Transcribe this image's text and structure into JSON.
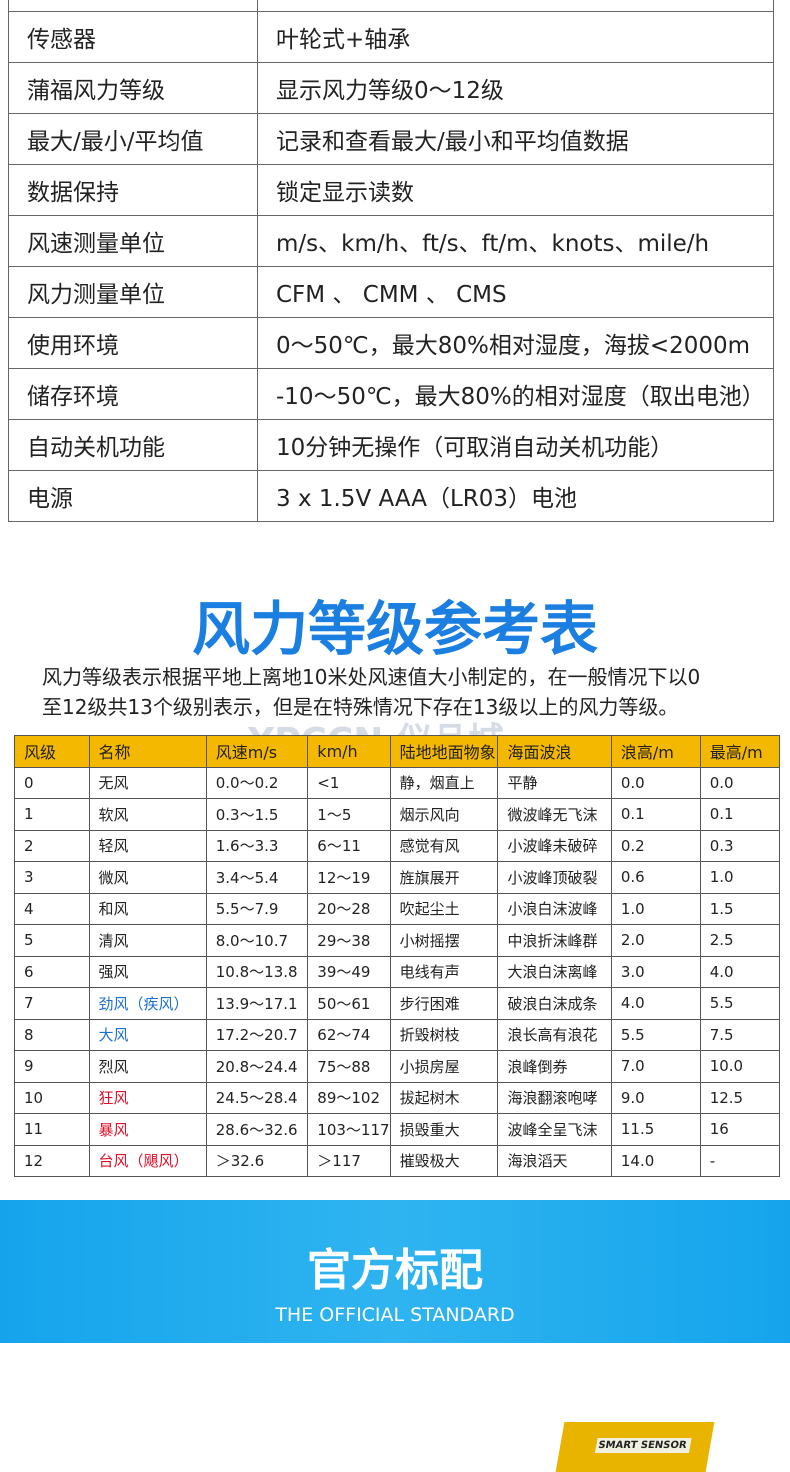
{
  "specs": {
    "rows": [
      [
        "传感器",
        "叶轮式+轴承"
      ],
      [
        "蒲福风力等级",
        "显示风力等级0～12级"
      ],
      [
        "最大/最小/平均值",
        "记录和查看最大/最小和平均值数据"
      ],
      [
        "数据保持",
        "锁定显示读数"
      ],
      [
        "风速测量单位",
        "m/s、km/h、ft/s、ft/m、knots、mile/h"
      ],
      [
        "风力测量单位",
        "CFM 、 CMM 、 CMS"
      ],
      [
        "使用环境",
        "0～50℃，最大80%相对湿度，海拔<2000m"
      ],
      [
        "储存环境",
        "-10～50℃，最大80%的相对湿度（取出电池）"
      ],
      [
        "自动关机功能",
        "10分钟无操作（可取消自动关机功能）"
      ],
      [
        "电源",
        "3 x 1.5V AAA（LR03）电池"
      ]
    ]
  },
  "reference": {
    "title": "风力等级参考表",
    "description": [
      "风力等级表示根据平地上离地10米处风速值大小制定的，在一般情况下以0",
      "至12级共13个级别表示，但是在特殊情况下存在13级以上的风力等级。"
    ],
    "watermark": "YPCCN 仪品城"
  },
  "table": {
    "header": [
      "风级",
      "名称",
      "风速m/s",
      "km/h",
      "陆地地面物象",
      "海面波浪",
      "浪高/m",
      "最高/m"
    ],
    "rows": [
      [
        "0",
        "无风",
        "0.0～0.2",
        "<1",
        "静，烟直上",
        "平静",
        "0.0",
        "0.0"
      ],
      [
        "1",
        "软风",
        "0.3～1.5",
        "1～5",
        "烟示风向",
        "微波峰无飞沫",
        "0.1",
        "0.1"
      ],
      [
        "2",
        "轻风",
        "1.6～3.3",
        "6～11",
        "感觉有风",
        "小波峰未破碎",
        "0.2",
        "0.3"
      ],
      [
        "3",
        "微风",
        "3.4～5.4",
        "12～19",
        "旌旗展开",
        "小波峰顶破裂",
        "0.6",
        "1.0"
      ],
      [
        "4",
        "和风",
        "5.5～7.9",
        "20～28",
        "吹起尘土",
        "小浪白沫波峰",
        "1.0",
        "1.5"
      ],
      [
        "5",
        "清风",
        "8.0～10.7",
        "29～38",
        "小树摇摆",
        "中浪折沫峰群",
        "2.0",
        "2.5"
      ],
      [
        "6",
        "强风",
        "10.8～13.8",
        "39～49",
        "电线有声",
        "大浪白沫离峰",
        "3.0",
        "4.0"
      ],
      [
        "7",
        "劲风（疾风）",
        "13.9～17.1",
        "50～61",
        "步行困难",
        "破浪白沫成条",
        "4.0",
        "5.5"
      ],
      [
        "8",
        "大风",
        "17.2～20.7",
        "62～74",
        "折毁树枝",
        "浪长高有浪花",
        "5.5",
        "7.5"
      ],
      [
        "9",
        "烈风",
        "20.8～24.4",
        "75～88",
        "小损房屋",
        "浪峰倒券",
        "7.0",
        "10.0"
      ],
      [
        "10",
        "狂风",
        "24.5～28.4",
        "89～102",
        "拔起树木",
        "海浪翻滚咆哮",
        "9.0",
        "12.5"
      ],
      [
        "11",
        "暴风",
        "28.6～32.6",
        "103～117",
        "损毁重大",
        "波峰全呈飞沫",
        "11.5",
        "16"
      ],
      [
        "12",
        "台风（飓风）",
        "＞32.6",
        "＞117",
        "摧毁极大",
        "海浪滔天",
        "14.0",
        "-"
      ]
    ]
  },
  "banner": {
    "title": "官方标配",
    "subtitle": "THE OFFICIAL STANDARD"
  },
  "product": {
    "label": "SMART SENSOR"
  }
}
